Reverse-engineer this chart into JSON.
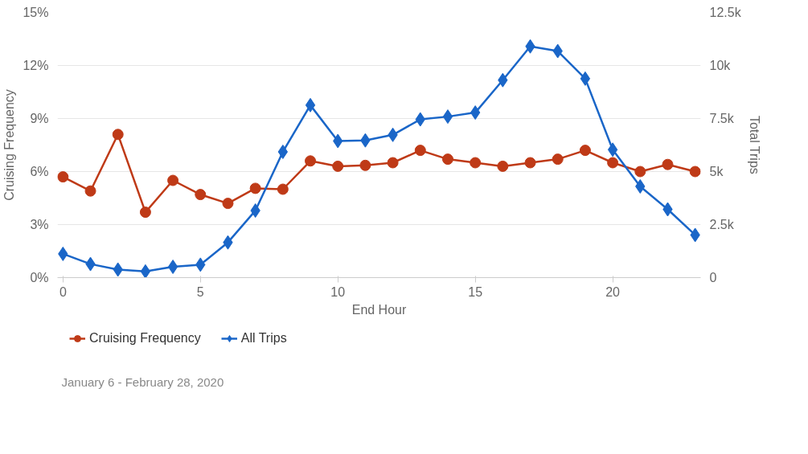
{
  "chart_data": {
    "type": "line",
    "xlabel": "End Hour",
    "ylabel": "Cruising Frequency",
    "y2label": "Total Trips",
    "x": [
      0,
      1,
      2,
      3,
      4,
      5,
      6,
      7,
      8,
      9,
      10,
      11,
      12,
      13,
      14,
      15,
      16,
      17,
      18,
      19,
      20,
      21,
      22,
      23
    ],
    "xlim": [
      -0.2,
      23.2
    ],
    "xticks": [
      0,
      5,
      10,
      15,
      20
    ],
    "ylim": [
      0,
      15
    ],
    "yticks": [
      {
        "value": 0,
        "label": "0%"
      },
      {
        "value": 3,
        "label": "3%"
      },
      {
        "value": 6,
        "label": "6%"
      },
      {
        "value": 9,
        "label": "9%"
      },
      {
        "value": 12,
        "label": "12%"
      },
      {
        "value": 15,
        "label": "15%"
      }
    ],
    "y2lim": [
      0,
      12500
    ],
    "y2ticks": [
      0,
      {
        "value": 2500,
        "label": "2.5k"
      },
      {
        "value": 5000,
        "label": "5k"
      },
      {
        "value": 7500,
        "label": "7.5k"
      },
      {
        "value": 10000,
        "label": "10k"
      },
      {
        "value": 12500,
        "label": "12.5k"
      }
    ],
    "series": [
      {
        "name": "Cruising Frequency",
        "color": "#bf3a17",
        "marker": "circle",
        "values": [
          5.7,
          4.9,
          8.1,
          3.7,
          5.5,
          4.7,
          4.2,
          5.05,
          5.0,
          6.6,
          6.3,
          6.35,
          6.5,
          7.2,
          6.7,
          6.5,
          6.3,
          6.5,
          6.7,
          7.2,
          6.5,
          6.0,
          6.4,
          6.0
        ]
      },
      {
        "name": "All Trips",
        "color": "#1a66c8",
        "marker": "diamond",
        "axis": "y2",
        "values": [
          1120,
          640,
          380,
          290,
          510,
          610,
          1660,
          3160,
          5930,
          8130,
          6440,
          6470,
          6730,
          7460,
          7590,
          7780,
          9310,
          10900,
          10680,
          9380,
          6030,
          4300,
          3220,
          2010
        ]
      }
    ],
    "grid": "y",
    "legend": "bottom left",
    "annotations": [
      "January 6 - February 28, 2020"
    ]
  }
}
